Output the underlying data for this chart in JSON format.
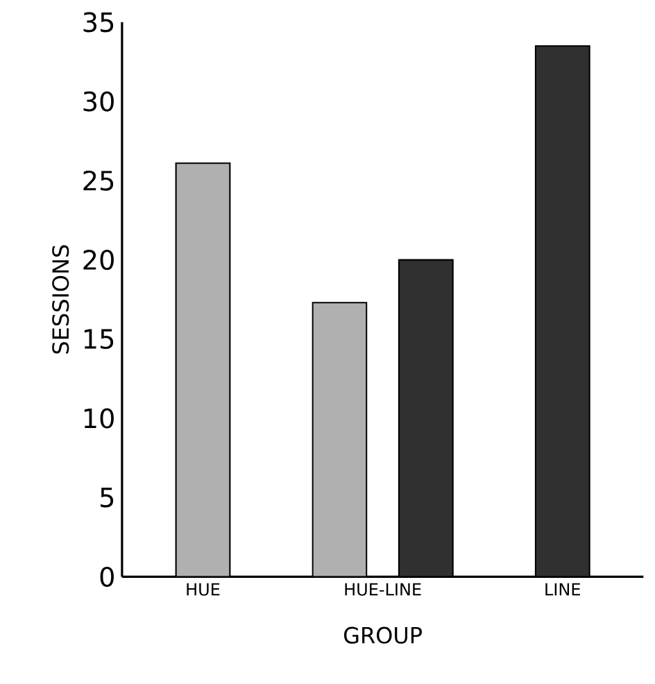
{
  "chart_data": {
    "type": "bar",
    "xlabel": "GROUP",
    "ylabel": "SESSIONS",
    "categories": [
      "HUE",
      "HUE-LINE",
      "LINE"
    ],
    "series": [
      {
        "color": "#b0b0b0",
        "values": [
          26.1,
          17.3,
          null
        ]
      },
      {
        "color": "#303030",
        "values": [
          null,
          20,
          33.5
        ]
      }
    ],
    "ylim": [
      0,
      35
    ],
    "yticks": [
      0,
      5,
      10,
      15,
      20,
      25,
      30,
      35
    ],
    "grid": false
  }
}
